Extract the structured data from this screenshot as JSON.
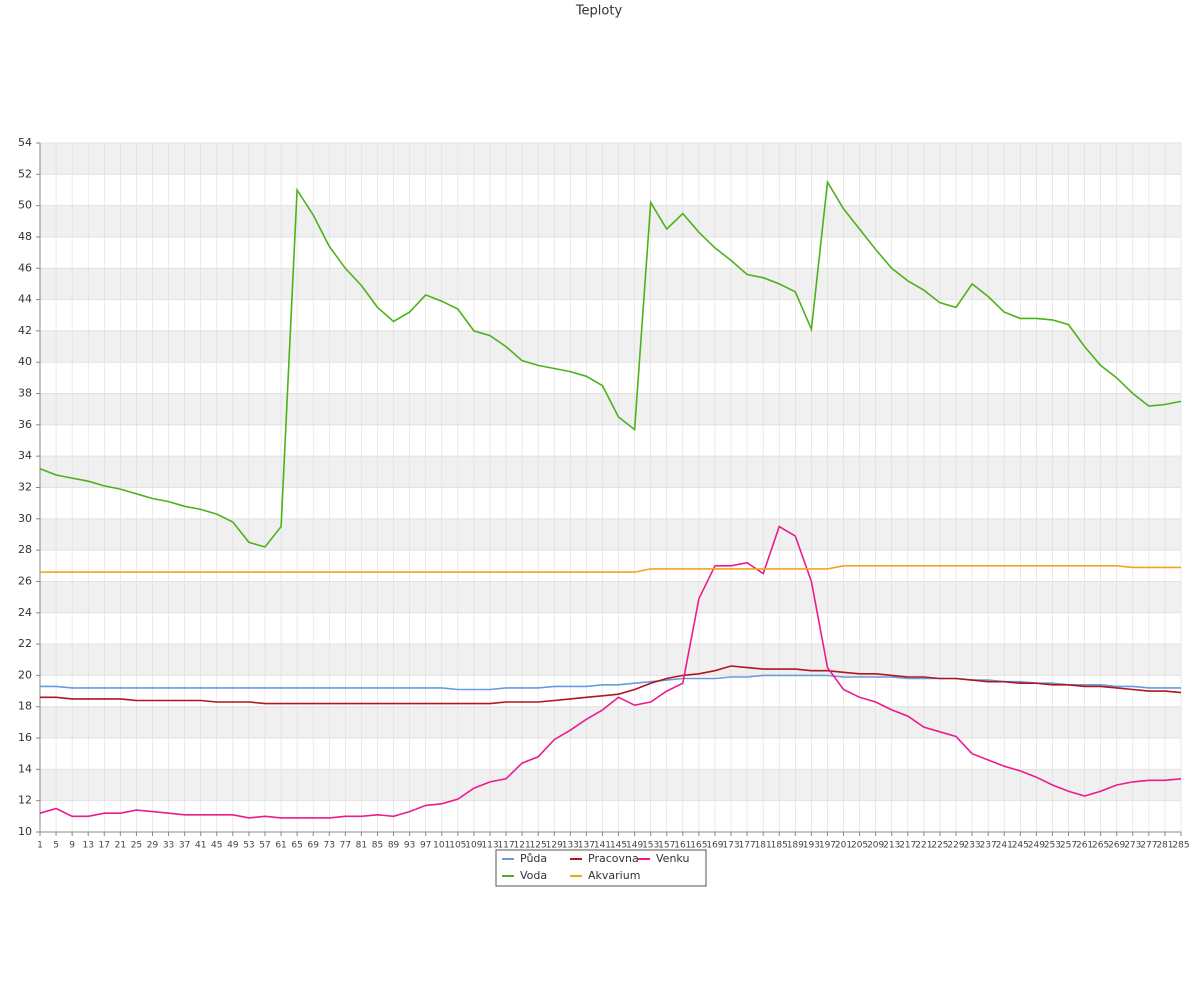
{
  "chart_data": {
    "type": "line",
    "title": "Teploty",
    "categories": [
      1,
      5,
      9,
      13,
      17,
      21,
      25,
      29,
      33,
      37,
      41,
      45,
      49,
      53,
      57,
      61,
      65,
      69,
      73,
      77,
      81,
      85,
      89,
      93,
      97,
      101,
      105,
      109,
      113,
      117,
      121,
      125,
      129,
      133,
      137,
      141,
      145,
      149,
      153,
      157,
      161,
      165,
      169,
      173,
      177,
      181,
      185,
      189,
      193,
      197,
      201,
      205,
      209,
      213,
      217,
      221,
      225,
      229,
      233,
      237,
      241,
      245,
      249,
      253,
      257,
      261,
      265,
      269,
      273,
      277,
      281,
      285
    ],
    "series": [
      {
        "name": "Půda",
        "color": "#6a9ae0",
        "values": [
          19.3,
          19.3,
          19.2,
          19.2,
          19.2,
          19.2,
          19.2,
          19.2,
          19.2,
          19.2,
          19.2,
          19.2,
          19.2,
          19.2,
          19.2,
          19.2,
          19.2,
          19.2,
          19.2,
          19.2,
          19.2,
          19.2,
          19.2,
          19.2,
          19.2,
          19.2,
          19.1,
          19.1,
          19.1,
          19.2,
          19.2,
          19.2,
          19.3,
          19.3,
          19.3,
          19.4,
          19.4,
          19.5,
          19.6,
          19.7,
          19.8,
          19.8,
          19.8,
          19.9,
          19.9,
          20.0,
          20.0,
          20.0,
          20.0,
          20.0,
          19.9,
          19.9,
          19.9,
          19.9,
          19.8,
          19.8,
          19.8,
          19.8,
          19.7,
          19.7,
          19.6,
          19.6,
          19.5,
          19.5,
          19.4,
          19.4,
          19.4,
          19.3,
          19.3,
          19.2,
          19.2,
          19.2
        ]
      },
      {
        "name": "Pracovna",
        "color": "#b0161e",
        "values": [
          18.6,
          18.6,
          18.5,
          18.5,
          18.5,
          18.5,
          18.4,
          18.4,
          18.4,
          18.4,
          18.4,
          18.3,
          18.3,
          18.3,
          18.2,
          18.2,
          18.2,
          18.2,
          18.2,
          18.2,
          18.2,
          18.2,
          18.2,
          18.2,
          18.2,
          18.2,
          18.2,
          18.2,
          18.2,
          18.3,
          18.3,
          18.3,
          18.4,
          18.5,
          18.6,
          18.7,
          18.8,
          19.1,
          19.5,
          19.8,
          20.0,
          20.1,
          20.3,
          20.6,
          20.5,
          20.4,
          20.4,
          20.4,
          20.3,
          20.3,
          20.2,
          20.1,
          20.1,
          20.0,
          19.9,
          19.9,
          19.8,
          19.8,
          19.7,
          19.6,
          19.6,
          19.5,
          19.5,
          19.4,
          19.4,
          19.3,
          19.3,
          19.2,
          19.1,
          19.0,
          19.0,
          18.9
        ]
      },
      {
        "name": "Venku",
        "color": "#ee1b8f",
        "values": [
          11.2,
          11.5,
          11.0,
          11.0,
          11.2,
          11.2,
          11.4,
          11.3,
          11.2,
          11.1,
          11.1,
          11.1,
          11.1,
          10.9,
          11.0,
          10.9,
          10.9,
          10.9,
          10.9,
          11.0,
          11.0,
          11.1,
          11.0,
          11.3,
          11.7,
          11.8,
          12.1,
          12.8,
          13.2,
          13.4,
          14.4,
          14.8,
          15.9,
          16.5,
          17.2,
          17.8,
          18.6,
          18.1,
          18.3,
          19.0,
          19.5,
          24.9,
          27.0,
          27.0,
          27.2,
          26.5,
          29.5,
          28.9,
          26.0,
          20.5,
          19.1,
          18.6,
          18.3,
          17.8,
          17.4,
          16.7,
          16.4,
          16.1,
          15.0,
          14.6,
          14.2,
          13.9,
          13.5,
          13.0,
          12.6,
          12.3,
          12.6,
          13.0,
          13.2,
          13.3,
          13.3,
          13.4
        ]
      },
      {
        "name": "Voda",
        "color": "#4cb21a",
        "values": [
          33.2,
          32.8,
          32.6,
          32.4,
          32.1,
          31.9,
          31.6,
          31.3,
          31.1,
          30.8,
          30.6,
          30.3,
          29.8,
          28.5,
          28.2,
          29.5,
          51.0,
          49.4,
          47.4,
          46.0,
          44.9,
          43.5,
          42.6,
          43.2,
          44.3,
          43.9,
          43.4,
          42.0,
          41.7,
          41.0,
          40.1,
          39.8,
          39.6,
          39.4,
          39.1,
          38.5,
          36.5,
          35.7,
          50.2,
          48.5,
          49.5,
          48.3,
          47.3,
          46.5,
          45.6,
          45.4,
          45.0,
          44.5,
          42.1,
          51.5,
          49.8,
          48.5,
          47.2,
          46.0,
          45.2,
          44.6,
          43.8,
          43.5,
          45.0,
          44.2,
          43.2,
          42.8,
          42.8,
          42.7,
          42.4,
          41.0,
          39.8,
          39.0,
          38.0,
          37.2,
          37.3,
          37.5
        ]
      },
      {
        "name": "Akvarium",
        "color": "#f5a31a",
        "values": [
          26.6,
          26.6,
          26.6,
          26.6,
          26.6,
          26.6,
          26.6,
          26.6,
          26.6,
          26.6,
          26.6,
          26.6,
          26.6,
          26.6,
          26.6,
          26.6,
          26.6,
          26.6,
          26.6,
          26.6,
          26.6,
          26.6,
          26.6,
          26.6,
          26.6,
          26.6,
          26.6,
          26.6,
          26.6,
          26.6,
          26.6,
          26.6,
          26.6,
          26.6,
          26.6,
          26.6,
          26.6,
          26.6,
          26.8,
          26.8,
          26.8,
          26.8,
          26.8,
          26.8,
          26.8,
          26.8,
          26.8,
          26.8,
          26.8,
          26.8,
          27.0,
          27.0,
          27.0,
          27.0,
          27.0,
          27.0,
          27.0,
          27.0,
          27.0,
          27.0,
          27.0,
          27.0,
          27.0,
          27.0,
          27.0,
          27.0,
          27.0,
          27.0,
          26.9,
          26.9,
          26.9,
          26.9
        ]
      }
    ],
    "ylim": [
      10,
      54
    ],
    "yticks": [
      10,
      12,
      14,
      16,
      18,
      20,
      22,
      24,
      26,
      28,
      30,
      32,
      34,
      36,
      38,
      40,
      42,
      44,
      46,
      48,
      50,
      52,
      54
    ],
    "grid": true,
    "legend": "bottom"
  }
}
